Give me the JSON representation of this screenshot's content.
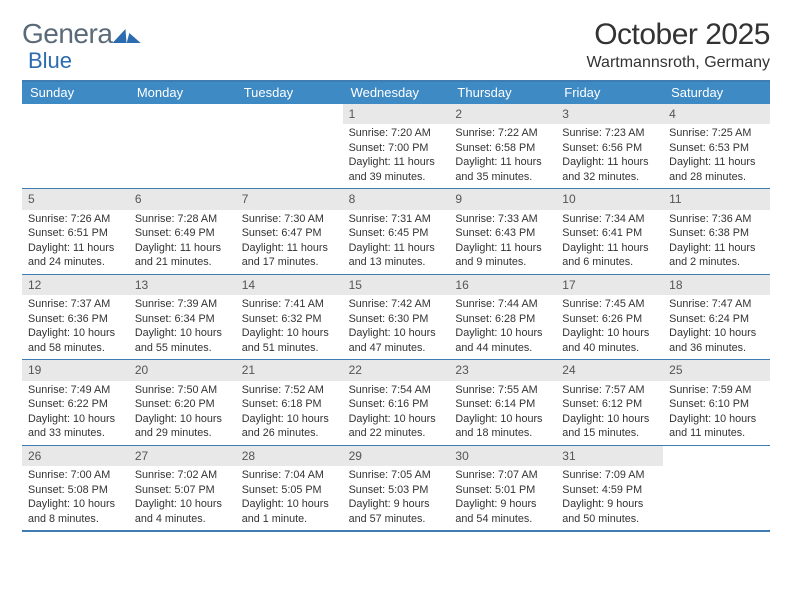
{
  "brand": {
    "part1": "Genera",
    "part2": "Blue"
  },
  "title": "October 2025",
  "location": "Wartmannsroth, Germany",
  "colors": {
    "header_bg": "#3e8ac4",
    "border": "#3e7cb1",
    "daynum_bg": "#e8e8e8",
    "brand_gray": "#5a6a78",
    "brand_blue": "#2b6cb0",
    "text": "#333333",
    "background": "#ffffff"
  },
  "day_names": [
    "Sunday",
    "Monday",
    "Tuesday",
    "Wednesday",
    "Thursday",
    "Friday",
    "Saturday"
  ],
  "weeks": [
    [
      {
        "n": "",
        "empty": true
      },
      {
        "n": "",
        "empty": true
      },
      {
        "n": "",
        "empty": true
      },
      {
        "n": "1",
        "sr": "7:20 AM",
        "ss": "7:00 PM",
        "dl": "11 hours and 39 minutes."
      },
      {
        "n": "2",
        "sr": "7:22 AM",
        "ss": "6:58 PM",
        "dl": "11 hours and 35 minutes."
      },
      {
        "n": "3",
        "sr": "7:23 AM",
        "ss": "6:56 PM",
        "dl": "11 hours and 32 minutes."
      },
      {
        "n": "4",
        "sr": "7:25 AM",
        "ss": "6:53 PM",
        "dl": "11 hours and 28 minutes."
      }
    ],
    [
      {
        "n": "5",
        "sr": "7:26 AM",
        "ss": "6:51 PM",
        "dl": "11 hours and 24 minutes."
      },
      {
        "n": "6",
        "sr": "7:28 AM",
        "ss": "6:49 PM",
        "dl": "11 hours and 21 minutes."
      },
      {
        "n": "7",
        "sr": "7:30 AM",
        "ss": "6:47 PM",
        "dl": "11 hours and 17 minutes."
      },
      {
        "n": "8",
        "sr": "7:31 AM",
        "ss": "6:45 PM",
        "dl": "11 hours and 13 minutes."
      },
      {
        "n": "9",
        "sr": "7:33 AM",
        "ss": "6:43 PM",
        "dl": "11 hours and 9 minutes."
      },
      {
        "n": "10",
        "sr": "7:34 AM",
        "ss": "6:41 PM",
        "dl": "11 hours and 6 minutes."
      },
      {
        "n": "11",
        "sr": "7:36 AM",
        "ss": "6:38 PM",
        "dl": "11 hours and 2 minutes."
      }
    ],
    [
      {
        "n": "12",
        "sr": "7:37 AM",
        "ss": "6:36 PM",
        "dl": "10 hours and 58 minutes."
      },
      {
        "n": "13",
        "sr": "7:39 AM",
        "ss": "6:34 PM",
        "dl": "10 hours and 55 minutes."
      },
      {
        "n": "14",
        "sr": "7:41 AM",
        "ss": "6:32 PM",
        "dl": "10 hours and 51 minutes."
      },
      {
        "n": "15",
        "sr": "7:42 AM",
        "ss": "6:30 PM",
        "dl": "10 hours and 47 minutes."
      },
      {
        "n": "16",
        "sr": "7:44 AM",
        "ss": "6:28 PM",
        "dl": "10 hours and 44 minutes."
      },
      {
        "n": "17",
        "sr": "7:45 AM",
        "ss": "6:26 PM",
        "dl": "10 hours and 40 minutes."
      },
      {
        "n": "18",
        "sr": "7:47 AM",
        "ss": "6:24 PM",
        "dl": "10 hours and 36 minutes."
      }
    ],
    [
      {
        "n": "19",
        "sr": "7:49 AM",
        "ss": "6:22 PM",
        "dl": "10 hours and 33 minutes."
      },
      {
        "n": "20",
        "sr": "7:50 AM",
        "ss": "6:20 PM",
        "dl": "10 hours and 29 minutes."
      },
      {
        "n": "21",
        "sr": "7:52 AM",
        "ss": "6:18 PM",
        "dl": "10 hours and 26 minutes."
      },
      {
        "n": "22",
        "sr": "7:54 AM",
        "ss": "6:16 PM",
        "dl": "10 hours and 22 minutes."
      },
      {
        "n": "23",
        "sr": "7:55 AM",
        "ss": "6:14 PM",
        "dl": "10 hours and 18 minutes."
      },
      {
        "n": "24",
        "sr": "7:57 AM",
        "ss": "6:12 PM",
        "dl": "10 hours and 15 minutes."
      },
      {
        "n": "25",
        "sr": "7:59 AM",
        "ss": "6:10 PM",
        "dl": "10 hours and 11 minutes."
      }
    ],
    [
      {
        "n": "26",
        "sr": "7:00 AM",
        "ss": "5:08 PM",
        "dl": "10 hours and 8 minutes."
      },
      {
        "n": "27",
        "sr": "7:02 AM",
        "ss": "5:07 PM",
        "dl": "10 hours and 4 minutes."
      },
      {
        "n": "28",
        "sr": "7:04 AM",
        "ss": "5:05 PM",
        "dl": "10 hours and 1 minute."
      },
      {
        "n": "29",
        "sr": "7:05 AM",
        "ss": "5:03 PM",
        "dl": "9 hours and 57 minutes."
      },
      {
        "n": "30",
        "sr": "7:07 AM",
        "ss": "5:01 PM",
        "dl": "9 hours and 54 minutes."
      },
      {
        "n": "31",
        "sr": "7:09 AM",
        "ss": "4:59 PM",
        "dl": "9 hours and 50 minutes."
      },
      {
        "n": "",
        "empty": true
      }
    ]
  ],
  "labels": {
    "sunrise": "Sunrise:",
    "sunset": "Sunset:",
    "daylight": "Daylight:"
  }
}
